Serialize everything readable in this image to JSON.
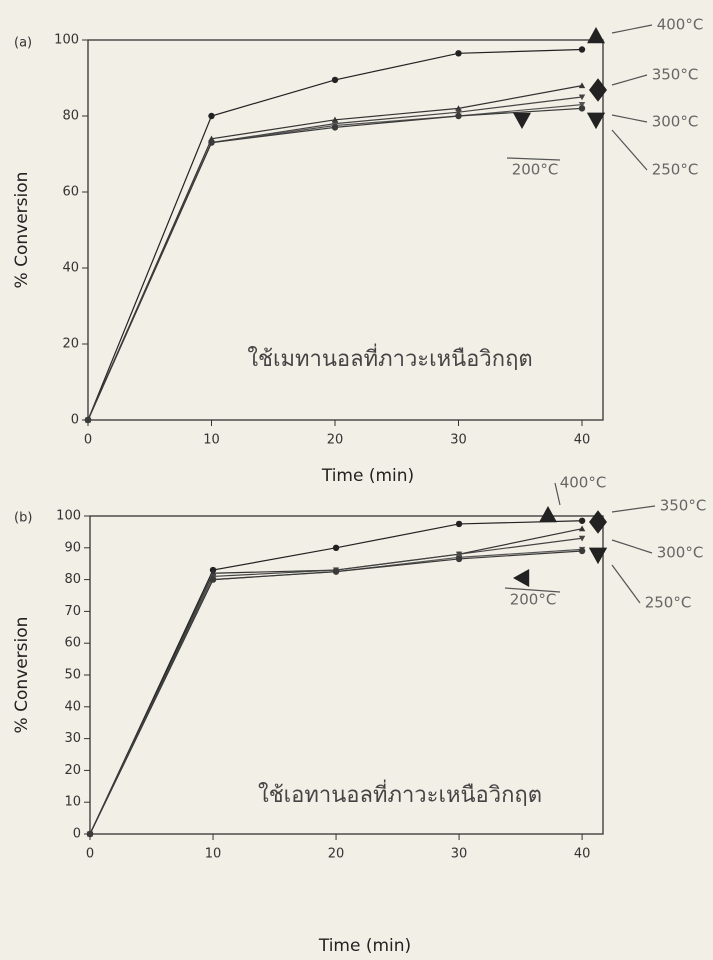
{
  "chart_data": [
    {
      "type": "line",
      "panel_label": "(a)",
      "annotation": "ใช้เมทานอลที่ภาวะเหนือวิกฤต",
      "x_label": "Time (min)",
      "y_label": "% Conversion",
      "x": [
        0,
        10,
        20,
        30,
        40
      ],
      "xlim": [
        0,
        41.7
      ],
      "xticks": [
        0,
        10,
        20,
        30,
        40
      ],
      "ylim": [
        0,
        100
      ],
      "yticks": [
        0,
        20,
        40,
        60,
        80,
        100
      ],
      "series": [
        {
          "name": "400°C",
          "color": "#222222",
          "values": [
            0,
            80,
            89.5,
            96.5,
            97.5
          ]
        },
        {
          "name": "350°C",
          "color": "#333333",
          "values": [
            0,
            74,
            79,
            82,
            88
          ]
        },
        {
          "name": "300°C",
          "color": "#444444",
          "values": [
            0,
            73,
            78,
            81,
            85
          ]
        },
        {
          "name": "250°C",
          "color": "#555555",
          "values": [
            0,
            73,
            77.5,
            80,
            83
          ]
        },
        {
          "name": "200°C",
          "color": "#3a3a3a",
          "values": [
            0,
            73,
            77,
            80,
            82
          ]
        }
      ]
    },
    {
      "type": "line",
      "panel_label": "(b)",
      "annotation": "ใช้เอทานอลที่ภาวะเหนือวิกฤต",
      "x_label": "Time (min)",
      "y_label": "% Conversion",
      "x": [
        0,
        10,
        20,
        30,
        40
      ],
      "xlim": [
        0,
        41.7
      ],
      "xticks": [
        0,
        10,
        20,
        30,
        40
      ],
      "ylim": [
        0,
        100
      ],
      "yticks": [
        0,
        10,
        20,
        30,
        40,
        50,
        60,
        70,
        80,
        90,
        100
      ],
      "series": [
        {
          "name": "400°C",
          "color": "#222222",
          "values": [
            0,
            83,
            90,
            97.5,
            98.5
          ]
        },
        {
          "name": "350°C",
          "color": "#333333",
          "values": [
            0,
            82,
            83,
            88,
            96
          ]
        },
        {
          "name": "300°C",
          "color": "#444444",
          "values": [
            0,
            81,
            83,
            88,
            93
          ]
        },
        {
          "name": "250°C",
          "color": "#555555",
          "values": [
            0,
            80,
            82.5,
            87,
            89.5
          ]
        },
        {
          "name": "200°C",
          "color": "#3a3a3a",
          "values": [
            0,
            80,
            82.5,
            86.5,
            89
          ]
        }
      ]
    }
  ]
}
